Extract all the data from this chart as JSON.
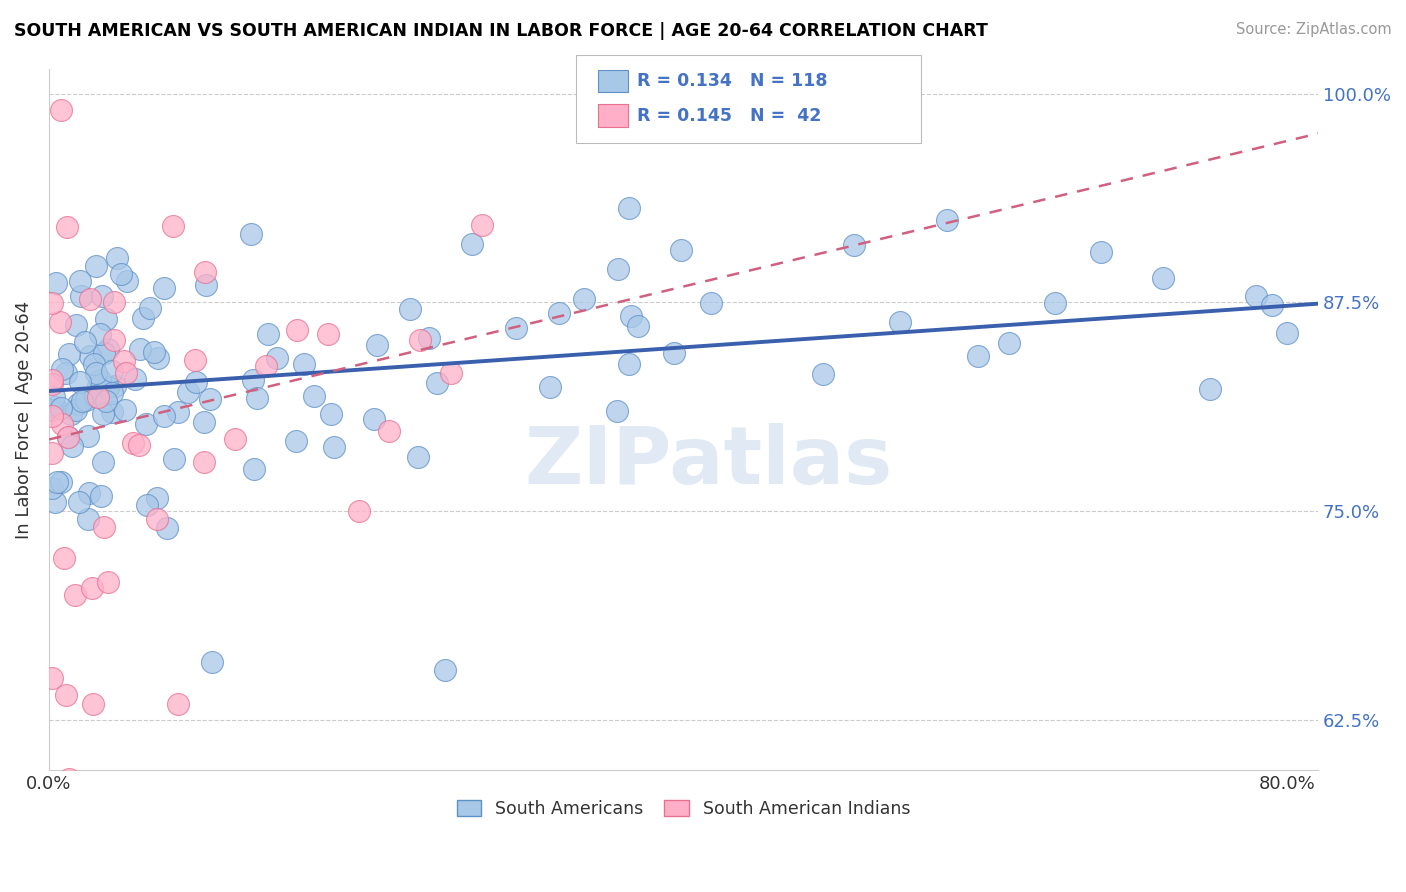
{
  "title": "SOUTH AMERICAN VS SOUTH AMERICAN INDIAN IN LABOR FORCE | AGE 20-64 CORRELATION CHART",
  "source": "Source: ZipAtlas.com",
  "ylabel": "In Labor Force | Age 20-64",
  "xlim": [
    0.0,
    0.82
  ],
  "ylim": [
    0.595,
    1.015
  ],
  "ytick_vals": [
    0.625,
    0.75,
    0.875,
    1.0
  ],
  "ytick_labels": [
    "62.5%",
    "75.0%",
    "87.5%",
    "100.0%"
  ],
  "blue_fill": "#A8C8E8",
  "blue_edge": "#6090C8",
  "pink_fill": "#FFB0C8",
  "pink_edge": "#E87090",
  "blue_line_color": "#3A5FAD",
  "pink_line_color": "#D06080",
  "legend_series1": "South Americans",
  "legend_series2": "South American Indians",
  "R_blue": 0.134,
  "N_blue": 118,
  "R_pink": 0.145,
  "N_pink": 42,
  "watermark": "ZIPatlas",
  "blue_line_x0": 0.0,
  "blue_line_y0": 0.822,
  "blue_line_x1": 0.8,
  "blue_line_y1": 0.873,
  "pink_line_x0": 0.0,
  "pink_line_y0": 0.793,
  "pink_line_x1": 0.3,
  "pink_line_y1": 0.86
}
